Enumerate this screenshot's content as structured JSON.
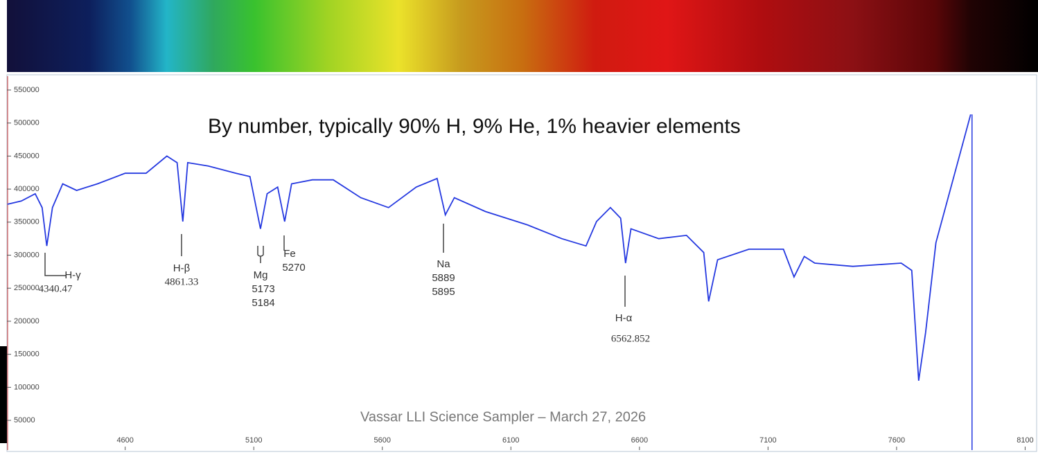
{
  "chart_data": {
    "type": "line",
    "title": "By number, typically 90% H, 9% He, 1% heavier elements",
    "footer": "Vassar LLI Science Sampler – March 27, 2026",
    "x": [
      4142,
      4196,
      4250,
      4277,
      4295,
      4317,
      4357,
      4411,
      4492,
      4600,
      4681,
      4762,
      4802,
      4824,
      4843,
      4923,
      5031,
      5085,
      5126,
      5152,
      5193,
      5220,
      5247,
      5328,
      5409,
      5516,
      5624,
      5732,
      5813,
      5845,
      5880,
      6001,
      6163,
      6298,
      6392,
      6433,
      6487,
      6527,
      6546,
      6567,
      6675,
      6783,
      6850,
      6869,
      6904,
      7026,
      7160,
      7201,
      7241,
      7282,
      7430,
      7618,
      7659,
      7686,
      7713,
      7753,
      7834,
      7888
    ],
    "series": [
      {
        "color": "#2438e0",
        "values": [
          377000,
          382000,
          393000,
          372000,
          314000,
          372000,
          408000,
          398000,
          408000,
          424000,
          424000,
          450000,
          440000,
          351000,
          440000,
          435000,
          424000,
          419000,
          340000,
          393000,
          403000,
          351000,
          408000,
          414000,
          414000,
          387000,
          372000,
          403000,
          416000,
          361000,
          387000,
          366000,
          346000,
          325000,
          314000,
          351000,
          372000,
          356000,
          288000,
          340000,
          325000,
          330000,
          304000,
          230000,
          293000,
          309000,
          309000,
          267000,
          298000,
          288000,
          283000,
          288000,
          277000,
          110000,
          183000,
          319000,
          435000,
          513000
        ]
      }
    ],
    "xlim": [
      4140,
      8150
    ],
    "xticks": [
      4600,
      5100,
      5600,
      6100,
      6600,
      7100,
      7600,
      8100
    ],
    "ylim": [
      5000,
      568000
    ],
    "yticks": [
      50000,
      100000,
      150000,
      200000,
      250000,
      300000,
      350000,
      400000,
      450000,
      500000,
      550000
    ],
    "annotations": [
      [
        "H-γ",
        "4340.47"
      ],
      [
        "H-β",
        "4861.33"
      ],
      [
        "Mg",
        "5173",
        "5184"
      ],
      [
        "Fe",
        "5270"
      ],
      [
        "Na",
        "5889",
        "5895"
      ],
      [
        "H-α",
        "6562.852"
      ]
    ]
  }
}
